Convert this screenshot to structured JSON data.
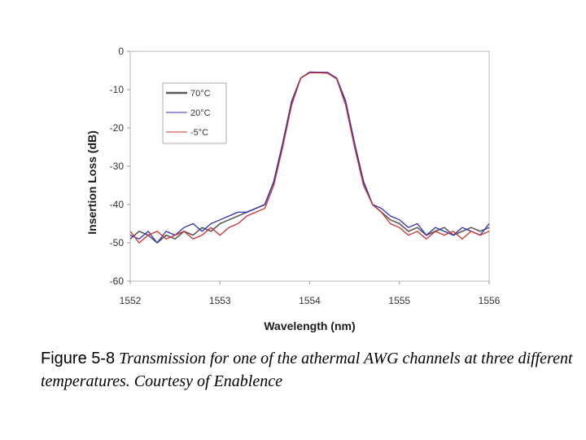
{
  "chart_data": {
    "type": "line",
    "title": "",
    "xlabel": "Wavelength (nm)",
    "ylabel": "Insertion Loss (dB)",
    "xlim": [
      1552,
      1556
    ],
    "ylim": [
      -60,
      0
    ],
    "xticks": [
      "1552",
      "1553",
      "1554",
      "1555",
      "1556"
    ],
    "yticks": [
      "0",
      "-10",
      "-20",
      "-30",
      "-40",
      "-50",
      "-60"
    ],
    "legend_position": "top-left",
    "grid": false,
    "series": [
      {
        "name": "70°C",
        "color": "#5a5a5a",
        "x": [
          1552.0,
          1552.1,
          1552.2,
          1552.3,
          1552.4,
          1552.5,
          1552.6,
          1552.7,
          1552.8,
          1552.9,
          1553.0,
          1553.1,
          1553.2,
          1553.3,
          1553.4,
          1553.5,
          1553.6,
          1553.7,
          1553.8,
          1553.9,
          1554.0,
          1554.1,
          1554.2,
          1554.3,
          1554.4,
          1554.5,
          1554.6,
          1554.7,
          1554.8,
          1554.9,
          1555.0,
          1555.1,
          1555.2,
          1555.3,
          1555.4,
          1555.5,
          1555.6,
          1555.7,
          1555.8,
          1555.9,
          1556.0
        ],
        "y": [
          -49,
          -47,
          -48,
          -50,
          -48,
          -49,
          -47,
          -48,
          -46,
          -47,
          -45,
          -44,
          -43,
          -42,
          -41,
          -40,
          -34,
          -24,
          -13,
          -7,
          -5.5,
          -5.5,
          -5.6,
          -7,
          -13,
          -24,
          -34,
          -40,
          -42,
          -44,
          -45,
          -47,
          -46,
          -48,
          -47,
          -46,
          -48,
          -47,
          -46,
          -47,
          -46
        ]
      },
      {
        "name": "20°C",
        "color": "#3030b8",
        "x": [
          1552.0,
          1552.1,
          1552.2,
          1552.3,
          1552.4,
          1552.5,
          1552.6,
          1552.7,
          1552.8,
          1552.9,
          1553.0,
          1553.1,
          1553.2,
          1553.3,
          1553.4,
          1553.5,
          1553.6,
          1553.7,
          1553.8,
          1553.9,
          1554.0,
          1554.1,
          1554.2,
          1554.3,
          1554.4,
          1554.5,
          1554.6,
          1554.7,
          1554.8,
          1554.9,
          1555.0,
          1555.1,
          1555.2,
          1555.3,
          1555.4,
          1555.5,
          1555.6,
          1555.7,
          1555.8,
          1555.9,
          1556.0
        ],
        "y": [
          -48,
          -49,
          -47,
          -50,
          -47,
          -48,
          -46,
          -45,
          -47,
          -45,
          -44,
          -43,
          -42,
          -42,
          -41,
          -40,
          -34,
          -24,
          -13,
          -7,
          -5.4,
          -5.5,
          -5.5,
          -7,
          -13,
          -24,
          -34,
          -40,
          -41,
          -43,
          -44,
          -46,
          -45,
          -48,
          -46,
          -47,
          -48,
          -46,
          -47,
          -48,
          -45
        ]
      },
      {
        "name": "-5°C",
        "color": "#c83232",
        "x": [
          1552.0,
          1552.1,
          1552.2,
          1552.3,
          1552.4,
          1552.5,
          1552.6,
          1552.7,
          1552.8,
          1552.9,
          1553.0,
          1553.1,
          1553.2,
          1553.3,
          1553.4,
          1553.5,
          1553.6,
          1553.7,
          1553.8,
          1553.9,
          1554.0,
          1554.1,
          1554.2,
          1554.3,
          1554.4,
          1554.5,
          1554.6,
          1554.7,
          1554.8,
          1554.9,
          1555.0,
          1555.1,
          1555.2,
          1555.3,
          1555.4,
          1555.5,
          1555.6,
          1555.7,
          1555.8,
          1555.9,
          1556.0
        ],
        "y": [
          -47,
          -50,
          -48,
          -47,
          -49,
          -48,
          -47,
          -49,
          -48,
          -46,
          -48,
          -46,
          -45,
          -43,
          -42,
          -41,
          -35,
          -25,
          -14,
          -7,
          -5.6,
          -5.6,
          -5.7,
          -7.2,
          -14,
          -25,
          -35,
          -40,
          -42,
          -45,
          -46,
          -48,
          -47,
          -49,
          -47,
          -48,
          -47,
          -49,
          -47,
          -48,
          -47
        ]
      }
    ]
  },
  "caption": {
    "label": "Figure 5-8",
    "text": "Transmission for one of the athermal AWG channels at three different temperatures. Courtesy of Enablence"
  }
}
